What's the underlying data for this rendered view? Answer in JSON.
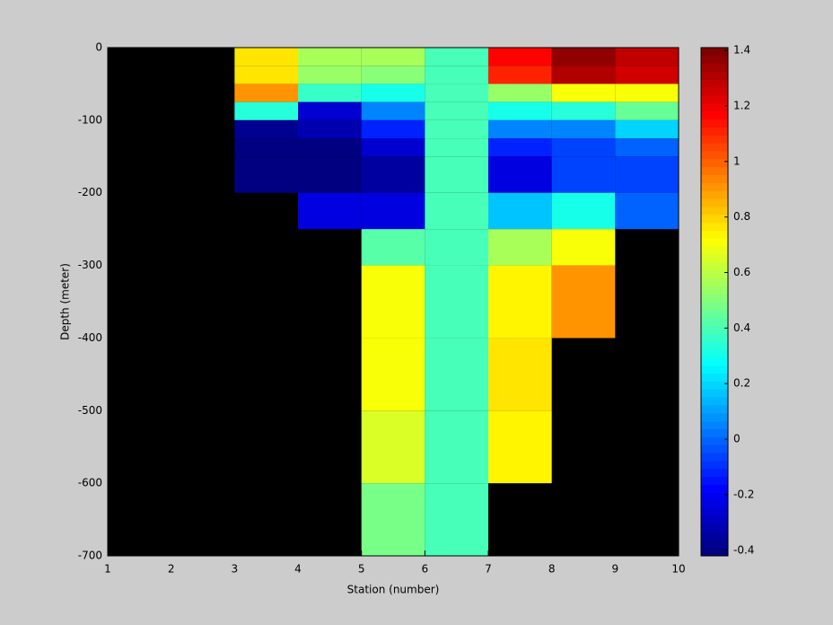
{
  "chart_data": {
    "type": "heatmap",
    "x_label": "Station (number)",
    "y_label": "Depth (meter)",
    "x": [
      1,
      2,
      3,
      4,
      5,
      6,
      7,
      8,
      9,
      10
    ],
    "y": [
      0,
      -25,
      -50,
      -75,
      -100,
      -125,
      -150,
      -200,
      -250,
      -300,
      -400,
      -500,
      -600,
      -700
    ],
    "values": [
      [
        null,
        null,
        0.78,
        0.57,
        0.57,
        0.4,
        1.18,
        1.38,
        1.28
      ],
      [
        null,
        null,
        0.78,
        0.55,
        0.52,
        0.4,
        1.12,
        1.3,
        1.25
      ],
      [
        null,
        null,
        0.92,
        0.37,
        0.3,
        0.4,
        0.55,
        0.72,
        0.72
      ],
      [
        null,
        null,
        0.35,
        -0.25,
        0.05,
        0.4,
        0.32,
        0.35,
        0.45
      ],
      [
        null,
        null,
        -0.37,
        -0.33,
        -0.12,
        0.4,
        0.05,
        0.05,
        0.2
      ],
      [
        null,
        null,
        -0.4,
        -0.41,
        -0.27,
        0.4,
        -0.13,
        -0.05,
        0.0
      ],
      [
        null,
        null,
        -0.41,
        -0.41,
        -0.35,
        0.4,
        -0.22,
        -0.05,
        -0.05
      ],
      [
        null,
        null,
        null,
        -0.22,
        -0.22,
        0.4,
        0.18,
        0.3,
        0.0
      ],
      [
        null,
        null,
        null,
        null,
        0.42,
        0.4,
        0.57,
        0.72,
        null
      ],
      [
        null,
        null,
        null,
        null,
        0.7,
        0.4,
        0.75,
        0.9,
        null
      ],
      [
        null,
        null,
        null,
        null,
        0.72,
        0.4,
        0.78,
        null,
        null
      ],
      [
        null,
        null,
        null,
        null,
        0.65,
        0.4,
        0.75,
        null,
        null
      ],
      [
        null,
        null,
        null,
        null,
        0.47,
        0.4,
        null,
        null,
        null
      ]
    ],
    "xlim": [
      1,
      10
    ],
    "xticks": [
      1,
      2,
      3,
      4,
      5,
      6,
      7,
      8,
      9,
      10
    ],
    "ylim": [
      -700,
      0
    ],
    "yticks": [
      -700,
      -600,
      -500,
      -400,
      -300,
      -200,
      -100,
      0
    ],
    "colormap": "jet",
    "missing_color": "#000000",
    "clim": [
      -0.42,
      1.41
    ],
    "cticks": [
      -0.4,
      -0.2,
      0,
      0.2,
      0.4,
      0.6,
      0.8,
      1,
      1.2,
      1.4
    ]
  }
}
